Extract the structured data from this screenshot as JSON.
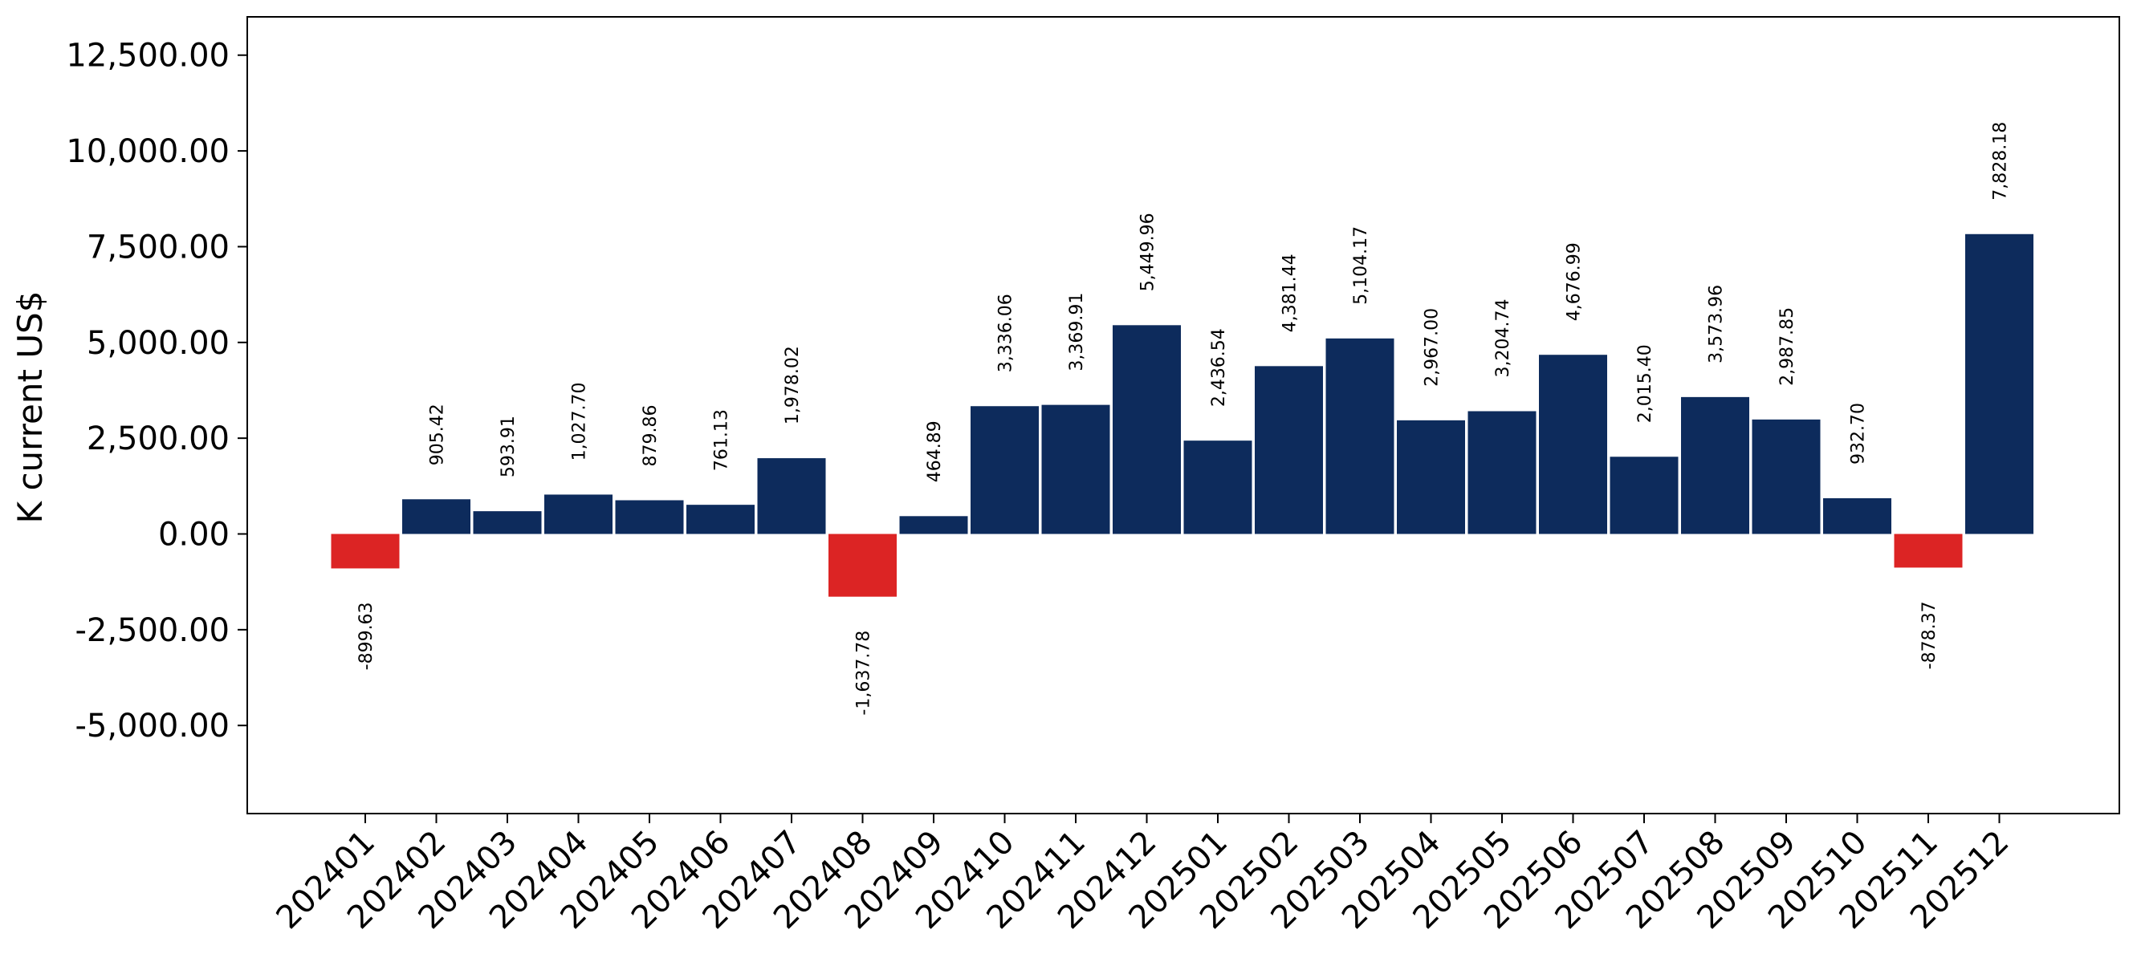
{
  "chart_data": {
    "type": "bar",
    "ylabel": "K current US$",
    "xlabel": "",
    "title": "",
    "ylim": [
      -7300,
      13500
    ],
    "yticks": [
      -5000,
      -2500,
      0,
      2500,
      5000,
      7500,
      10000,
      12500
    ],
    "ytick_labels": [
      "-5,000.00",
      "-2,500.00",
      "0.00",
      "2,500.00",
      "5,000.00",
      "7,500.00",
      "10,000.00",
      "12,500.00"
    ],
    "grid": false,
    "legend": "none",
    "colors": {
      "positive": "#0d2b5c",
      "negative": "#dc2424"
    },
    "categories": [
      "202401",
      "202402",
      "202403",
      "202404",
      "202405",
      "202406",
      "202407",
      "202408",
      "202409",
      "202410",
      "202411",
      "202412",
      "202501",
      "202502",
      "202503",
      "202504",
      "202505",
      "202506",
      "202507",
      "202508",
      "202509",
      "202510",
      "202511",
      "202512"
    ],
    "values": [
      -899.63,
      905.42,
      593.91,
      1027.7,
      879.86,
      761.13,
      1978.02,
      -1637.78,
      464.89,
      3336.06,
      3369.91,
      5449.96,
      2436.54,
      4381.44,
      5104.17,
      2967.0,
      3204.74,
      4676.99,
      2015.4,
      3573.96,
      2987.85,
      932.7,
      -878.37,
      7828.18
    ],
    "value_labels": [
      "-899.63",
      "905.42",
      "593.91",
      "1,027.70",
      "879.86",
      "761.13",
      "1,978.02",
      "-1,637.78",
      "464.89",
      "3,336.06",
      "3,369.91",
      "5,449.96",
      "2,436.54",
      "4,381.44",
      "5,104.17",
      "2,967.00",
      "3,204.74",
      "4,676.99",
      "2,015.40",
      "3,573.96",
      "2,987.85",
      "932.70",
      "-878.37",
      "7,828.18"
    ]
  }
}
